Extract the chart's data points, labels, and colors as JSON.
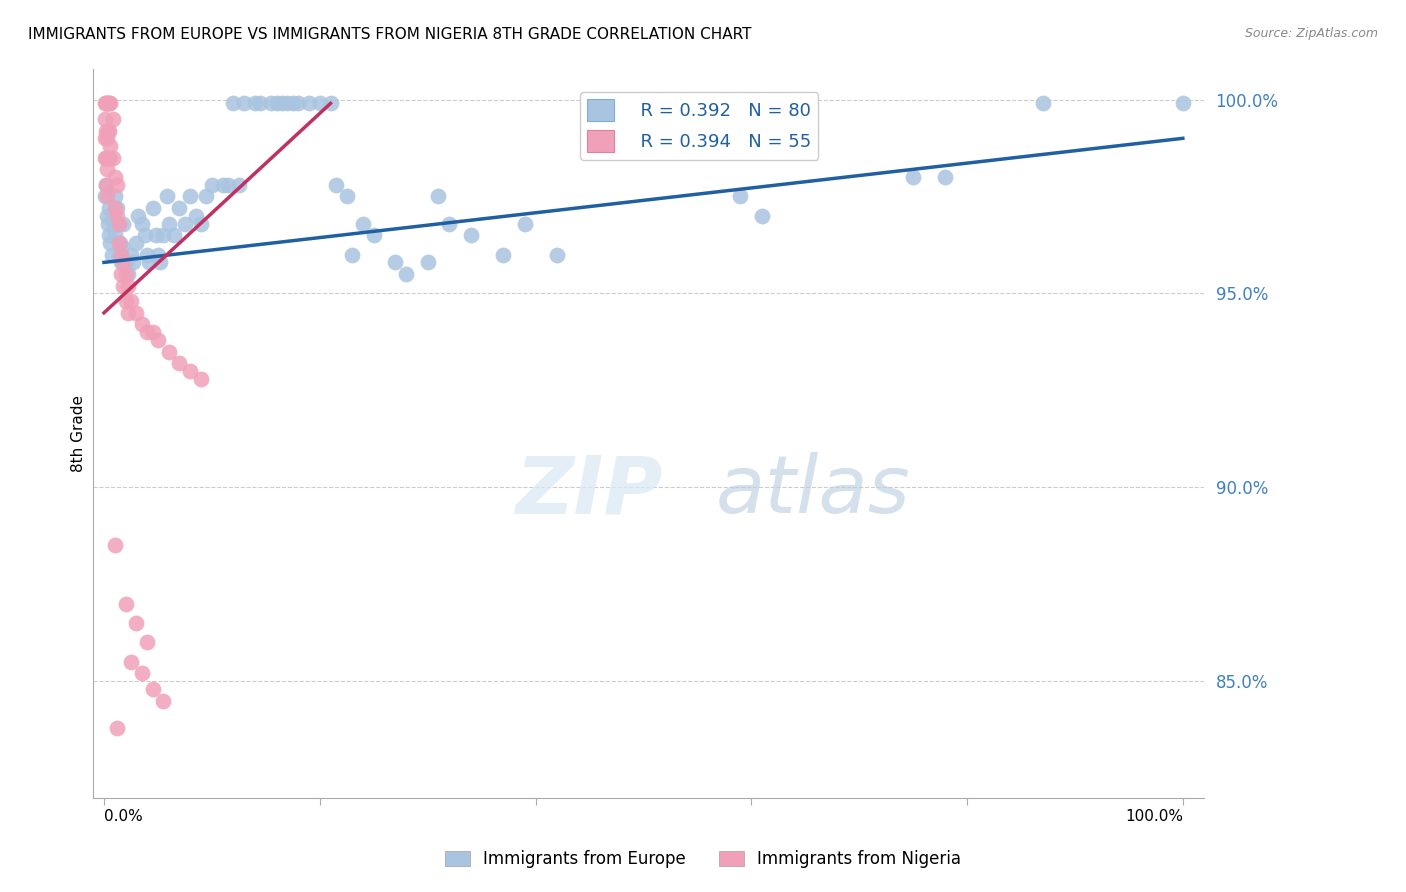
{
  "title": "IMMIGRANTS FROM EUROPE VS IMMIGRANTS FROM NIGERIA 8TH GRADE CORRELATION CHART",
  "source": "Source: ZipAtlas.com",
  "ylabel": "8th Grade",
  "watermark_zip": "ZIP",
  "watermark_atlas": "atlas",
  "blue_label": "Immigrants from Europe",
  "pink_label": "Immigrants from Nigeria",
  "blue_R": "R = 0.392",
  "blue_N": "N = 80",
  "pink_R": "R = 0.394",
  "pink_N": "N = 55",
  "blue_color": "#a8c4e0",
  "pink_color": "#f0a0b8",
  "blue_line_color": "#2060a0",
  "pink_line_color": "#c03060",
  "yticks": [
    0.85,
    0.9,
    0.95,
    1.0
  ],
  "ytick_labels": [
    "85.0%",
    "90.0%",
    "95.0%",
    "100.0%"
  ],
  "ymin": 0.82,
  "ymax": 1.008,
  "xmin": -0.01,
  "xmax": 1.02,
  "blue_points": [
    [
      0.001,
      0.975
    ],
    [
      0.002,
      0.978
    ],
    [
      0.003,
      0.97
    ],
    [
      0.004,
      0.968
    ],
    [
      0.005,
      0.972
    ],
    [
      0.005,
      0.965
    ],
    [
      0.006,
      0.963
    ],
    [
      0.007,
      0.96
    ],
    [
      0.008,
      0.97
    ],
    [
      0.009,
      0.968
    ],
    [
      0.01,
      0.975
    ],
    [
      0.01,
      0.965
    ],
    [
      0.012,
      0.972
    ],
    [
      0.013,
      0.968
    ],
    [
      0.014,
      0.96
    ],
    [
      0.015,
      0.963
    ],
    [
      0.016,
      0.958
    ],
    [
      0.017,
      0.962
    ],
    [
      0.018,
      0.968
    ],
    [
      0.02,
      0.958
    ],
    [
      0.022,
      0.955
    ],
    [
      0.025,
      0.96
    ],
    [
      0.027,
      0.958
    ],
    [
      0.03,
      0.963
    ],
    [
      0.032,
      0.97
    ],
    [
      0.035,
      0.968
    ],
    [
      0.038,
      0.965
    ],
    [
      0.04,
      0.96
    ],
    [
      0.042,
      0.958
    ],
    [
      0.045,
      0.972
    ],
    [
      0.048,
      0.965
    ],
    [
      0.05,
      0.96
    ],
    [
      0.052,
      0.958
    ],
    [
      0.055,
      0.965
    ],
    [
      0.058,
      0.975
    ],
    [
      0.06,
      0.968
    ],
    [
      0.065,
      0.965
    ],
    [
      0.07,
      0.972
    ],
    [
      0.075,
      0.968
    ],
    [
      0.08,
      0.975
    ],
    [
      0.085,
      0.97
    ],
    [
      0.09,
      0.968
    ],
    [
      0.095,
      0.975
    ],
    [
      0.1,
      0.978
    ],
    [
      0.11,
      0.978
    ],
    [
      0.115,
      0.978
    ],
    [
      0.12,
      0.999
    ],
    [
      0.125,
      0.978
    ],
    [
      0.13,
      0.999
    ],
    [
      0.14,
      0.999
    ],
    [
      0.145,
      0.999
    ],
    [
      0.155,
      0.999
    ],
    [
      0.16,
      0.999
    ],
    [
      0.165,
      0.999
    ],
    [
      0.17,
      0.999
    ],
    [
      0.175,
      0.999
    ],
    [
      0.18,
      0.999
    ],
    [
      0.19,
      0.999
    ],
    [
      0.2,
      0.999
    ],
    [
      0.21,
      0.999
    ],
    [
      0.215,
      0.978
    ],
    [
      0.225,
      0.975
    ],
    [
      0.23,
      0.96
    ],
    [
      0.24,
      0.968
    ],
    [
      0.25,
      0.965
    ],
    [
      0.27,
      0.958
    ],
    [
      0.28,
      0.955
    ],
    [
      0.3,
      0.958
    ],
    [
      0.31,
      0.975
    ],
    [
      0.32,
      0.968
    ],
    [
      0.34,
      0.965
    ],
    [
      0.37,
      0.96
    ],
    [
      0.39,
      0.968
    ],
    [
      0.42,
      0.96
    ],
    [
      0.59,
      0.975
    ],
    [
      0.61,
      0.97
    ],
    [
      0.75,
      0.98
    ],
    [
      0.78,
      0.98
    ],
    [
      0.87,
      0.999
    ],
    [
      1.0,
      0.999
    ]
  ],
  "pink_points": [
    [
      0.001,
      0.999
    ],
    [
      0.001,
      0.995
    ],
    [
      0.001,
      0.99
    ],
    [
      0.001,
      0.985
    ],
    [
      0.002,
      0.999
    ],
    [
      0.002,
      0.992
    ],
    [
      0.002,
      0.985
    ],
    [
      0.002,
      0.978
    ],
    [
      0.003,
      0.999
    ],
    [
      0.003,
      0.99
    ],
    [
      0.003,
      0.982
    ],
    [
      0.003,
      0.975
    ],
    [
      0.004,
      0.999
    ],
    [
      0.004,
      0.992
    ],
    [
      0.004,
      0.985
    ],
    [
      0.005,
      0.999
    ],
    [
      0.005,
      0.992
    ],
    [
      0.005,
      0.985
    ],
    [
      0.006,
      0.999
    ],
    [
      0.006,
      0.988
    ],
    [
      0.008,
      0.995
    ],
    [
      0.008,
      0.985
    ],
    [
      0.01,
      0.98
    ],
    [
      0.01,
      0.972
    ],
    [
      0.012,
      0.978
    ],
    [
      0.012,
      0.97
    ],
    [
      0.014,
      0.968
    ],
    [
      0.014,
      0.963
    ],
    [
      0.016,
      0.96
    ],
    [
      0.016,
      0.955
    ],
    [
      0.018,
      0.958
    ],
    [
      0.018,
      0.952
    ],
    [
      0.02,
      0.955
    ],
    [
      0.02,
      0.948
    ],
    [
      0.022,
      0.952
    ],
    [
      0.022,
      0.945
    ],
    [
      0.025,
      0.948
    ],
    [
      0.03,
      0.945
    ],
    [
      0.035,
      0.942
    ],
    [
      0.04,
      0.94
    ],
    [
      0.045,
      0.94
    ],
    [
      0.05,
      0.938
    ],
    [
      0.06,
      0.935
    ],
    [
      0.07,
      0.932
    ],
    [
      0.08,
      0.93
    ],
    [
      0.09,
      0.928
    ],
    [
      0.01,
      0.885
    ],
    [
      0.02,
      0.87
    ],
    [
      0.03,
      0.865
    ],
    [
      0.04,
      0.86
    ],
    [
      0.025,
      0.855
    ],
    [
      0.035,
      0.852
    ],
    [
      0.045,
      0.848
    ],
    [
      0.055,
      0.845
    ],
    [
      0.012,
      0.838
    ]
  ],
  "blue_trendline": [
    [
      0.0,
      0.958
    ],
    [
      1.0,
      0.99
    ]
  ],
  "pink_trendline": [
    [
      0.0,
      0.945
    ],
    [
      0.21,
      0.999
    ]
  ]
}
